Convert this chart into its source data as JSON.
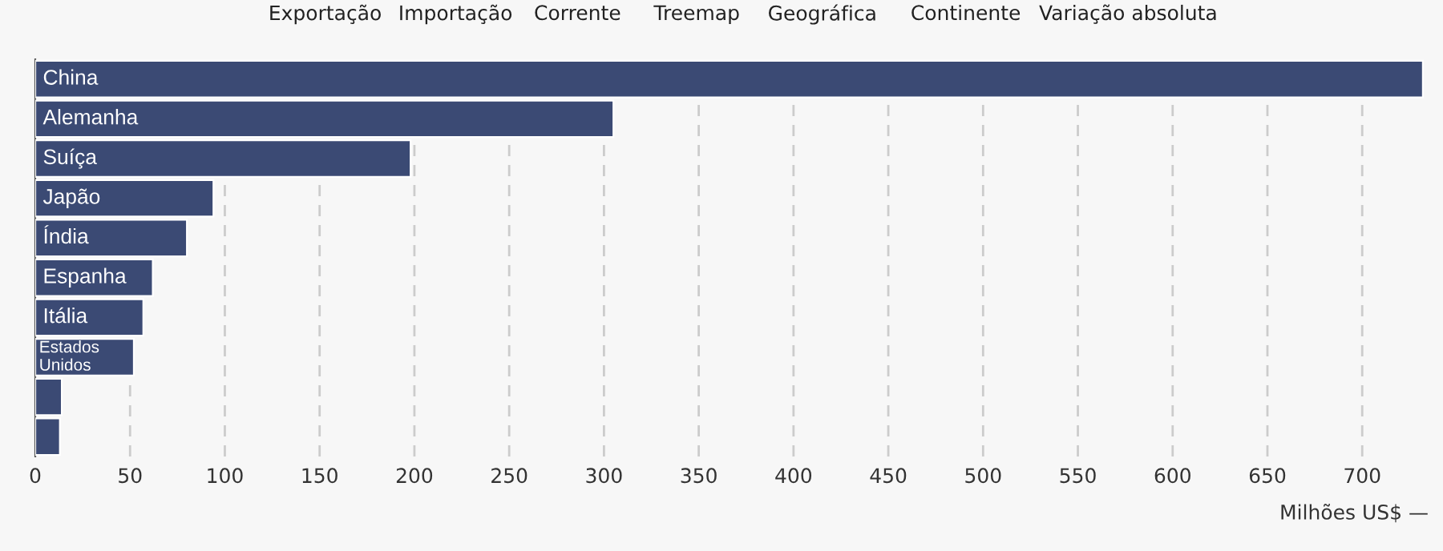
{
  "chart_data": {
    "type": "bar",
    "orientation": "horizontal",
    "categories": [
      "China",
      "Alemanha",
      "Suíça",
      "Japão",
      "Índia",
      "Espanha",
      "Itália",
      "Estados Unidos",
      null,
      null
    ],
    "values": [
      732,
      305,
      198,
      94,
      80,
      62,
      57,
      52,
      14,
      13
    ],
    "color": "#3b4a74",
    "xlabel": "Milhões US$ —",
    "xlim": [
      0,
      735
    ],
    "xticks": [
      0,
      50,
      100,
      150,
      200,
      250,
      300,
      350,
      400,
      450,
      500,
      550,
      600,
      650,
      700
    ],
    "grid": "x",
    "annotations": [
      "Exportação",
      "Importação",
      "Corrente",
      "Treemap",
      "Geográfica",
      "Continente",
      "Variação absoluta"
    ]
  }
}
